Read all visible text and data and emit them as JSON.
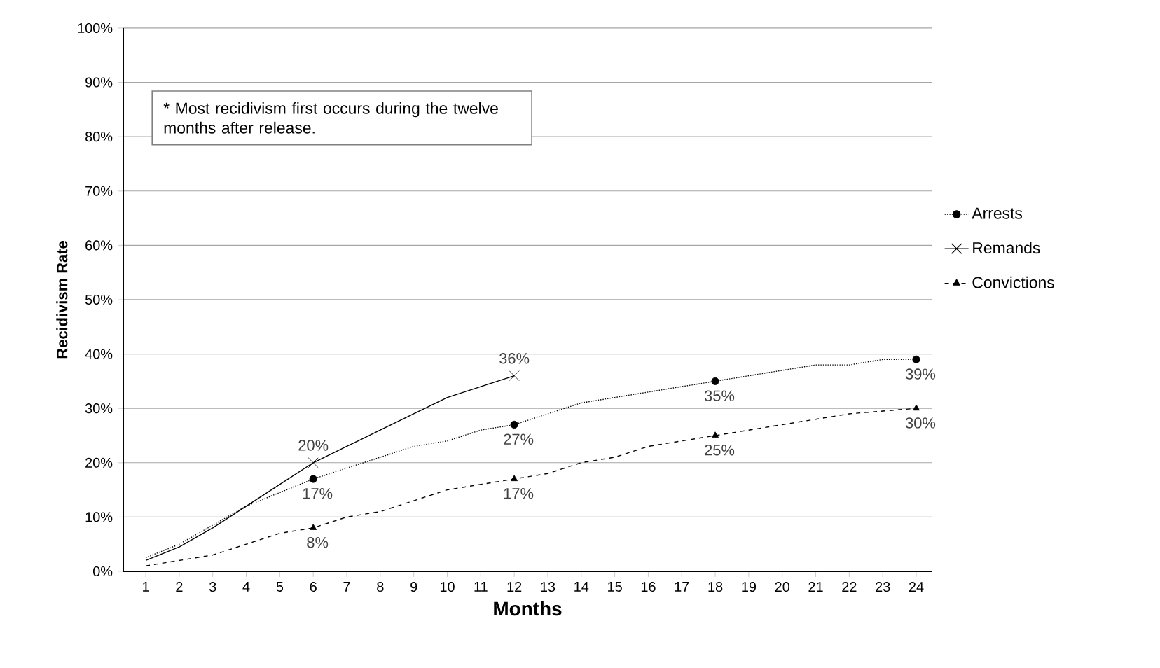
{
  "chart_data": {
    "type": "line",
    "xlabel": "Months",
    "ylabel": "Recidivism Rate",
    "categories": [
      "1",
      "2",
      "3",
      "4",
      "5",
      "6",
      "7",
      "8",
      "9",
      "10",
      "11",
      "12",
      "13",
      "14",
      "15",
      "16",
      "17",
      "18",
      "19",
      "20",
      "21",
      "22",
      "23",
      "24"
    ],
    "ylim": [
      0,
      100
    ],
    "yticks": [
      {
        "value": 0,
        "label": "0%"
      },
      {
        "value": 10,
        "label": "10%"
      },
      {
        "value": 20,
        "label": "20%"
      },
      {
        "value": 30,
        "label": "30%"
      },
      {
        "value": 40,
        "label": "40%"
      },
      {
        "value": 50,
        "label": "50%"
      },
      {
        "value": 60,
        "label": "60%"
      },
      {
        "value": 70,
        "label": "70%"
      },
      {
        "value": 80,
        "label": "80%"
      },
      {
        "value": 90,
        "label": "90%"
      },
      {
        "value": 100,
        "label": "100%"
      }
    ],
    "grid": "y",
    "legend": "right",
    "annotations": [
      "* Most recidivism first occurs during the twelve months after release."
    ],
    "series": [
      {
        "name": "Arrests",
        "color": "#000000",
        "line_style": "dotted",
        "values": [
          2.5,
          5,
          8.5,
          12,
          14.5,
          17,
          19,
          21,
          23,
          24,
          26,
          27,
          29,
          31,
          32,
          33,
          34,
          35,
          36,
          37,
          38,
          38,
          39,
          39
        ]
      },
      {
        "type": "scatter",
        "color": "#000000",
        "marker": "circle",
        "x": [
          "6",
          "12",
          "18",
          "24"
        ],
        "values": [
          17,
          27,
          35,
          39
        ],
        "value_labels": [
          "17%",
          "27%",
          "35%",
          "39%"
        ]
      },
      {
        "name": "Remands",
        "color": "#000000",
        "line_style": "solid",
        "values": [
          2,
          4.5,
          8,
          12,
          16,
          20,
          23,
          26,
          29,
          32,
          34,
          36,
          null,
          null,
          null,
          null,
          null,
          null,
          null,
          null,
          null,
          null,
          null,
          null
        ]
      },
      {
        "type": "scatter",
        "color": "#000000",
        "marker": "cross",
        "x": [
          "6",
          "12"
        ],
        "values": [
          20,
          36
        ],
        "value_labels": [
          "20%",
          "36%"
        ]
      },
      {
        "name": "Convictions",
        "color": "#000000",
        "line_style": "dashed",
        "values": [
          1,
          2,
          3,
          5,
          7,
          8,
          10,
          11,
          13,
          15,
          16,
          17,
          18,
          20,
          21,
          23,
          24,
          25,
          26,
          27,
          28,
          29,
          29.5,
          30
        ]
      },
      {
        "type": "scatter",
        "color": "#000000",
        "marker": "triangle",
        "x": [
          "6",
          "12",
          "18",
          "24"
        ],
        "values": [
          8,
          17,
          25,
          30
        ],
        "value_labels": [
          "8%",
          "17%",
          "25%",
          "30%"
        ]
      }
    ]
  }
}
